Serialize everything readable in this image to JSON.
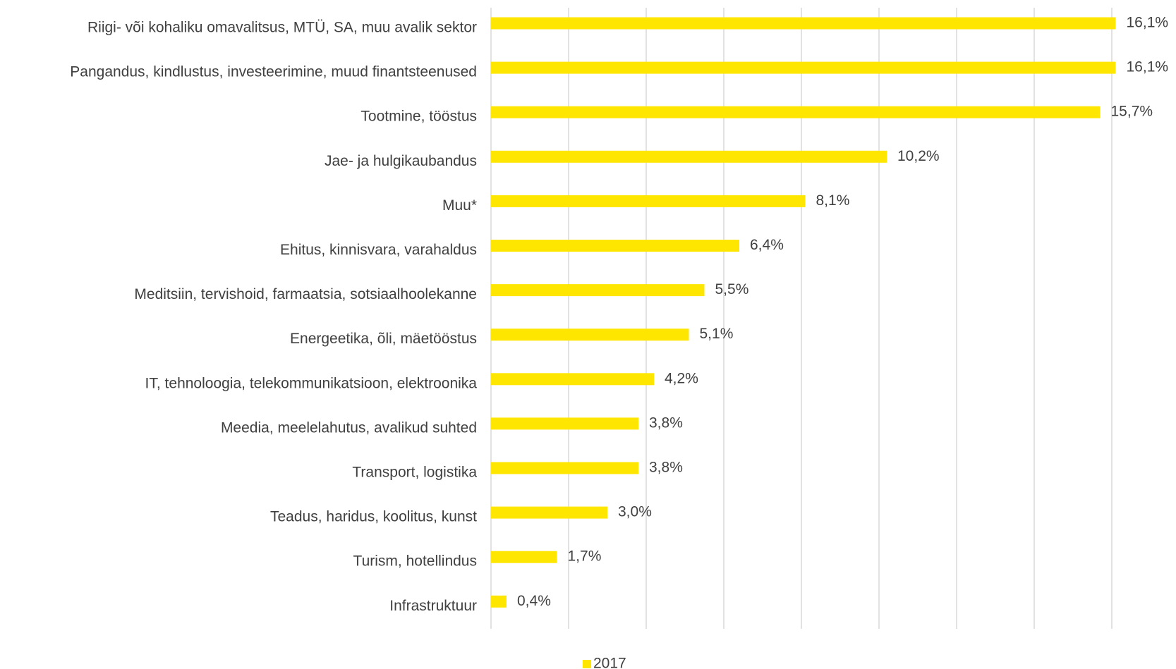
{
  "chart_data": {
    "type": "bar",
    "orientation": "horizontal",
    "categories": [
      "Riigi- või kohaliku omavalitsus, MTÜ, SA, muu avalik sektor",
      "Pangandus, kindlustus, investeerimine, muud finantsteenused",
      "Tootmine, tööstus",
      "Jae- ja hulgikaubandus",
      "Muu*",
      "Ehitus, kinnisvara, varahaldus",
      "Meditsiin, tervishoid, farmaatsia, sotsiaalhoolekanne",
      "Energeetika, õli, mäetööstus",
      "IT, tehnoloogia, telekommunikatsioon, elektroonika",
      "Meedia, meelelahutus, avalikud suhted",
      "Transport, logistika",
      "Teadus, haridus, koolitus, kunst",
      "Turism, hotellindus",
      "Infrastruktuur"
    ],
    "series": [
      {
        "name": "2017",
        "color": "#ffe600",
        "values": [
          16.1,
          16.1,
          15.7,
          10.2,
          8.1,
          6.4,
          5.5,
          5.1,
          4.2,
          3.8,
          3.8,
          3.0,
          1.7,
          0.4
        ],
        "value_labels": [
          "16,1%",
          "16,1%",
          "15,7%",
          "10,2%",
          "8,1%",
          "6,4%",
          "5,5%",
          "5,1%",
          "4,2%",
          "3,8%",
          "3,8%",
          "3,0%",
          "1,7%",
          "0,4%"
        ]
      }
    ],
    "xlim": [
      0,
      16
    ],
    "xticks": [
      0,
      2,
      4,
      6,
      8,
      10,
      12,
      14,
      16
    ],
    "grid": true,
    "legend": "bottom"
  }
}
